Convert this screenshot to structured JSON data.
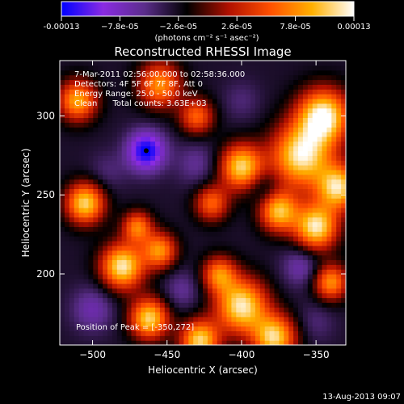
{
  "colorbar": {
    "tick_labels": [
      "-0.00013",
      "−7.8e-05",
      "−2.6e-05",
      "2.6e-05",
      "7.8e-05",
      "0.00013"
    ],
    "units_label": "(photons cm⁻² s⁻¹ asec⁻²)",
    "colors": [
      "#0000ff",
      "#8a2be2",
      "#5a2d8a",
      "#000000",
      "#b01000",
      "#ff5000",
      "#ffb000",
      "#ffffff"
    ]
  },
  "footer": {
    "date": "13-Aug-2013 09:07"
  },
  "chart_data": {
    "type": "heatmap",
    "title": "Reconstructed RHESSI Image",
    "xlabel": "Heliocentric X (arcsec)",
    "ylabel": "Heliocentric Y (arcsec)",
    "xlim": [
      -522,
      -330
    ],
    "ylim": [
      155,
      335
    ],
    "xticks": [
      -500,
      -450,
      -400,
      -350
    ],
    "yticks": [
      200,
      250,
      300
    ],
    "zlim": [
      -0.00013,
      0.00013
    ],
    "annotations": [
      "7-Mar-2011 02:56:00.000 to 02:58:36.000",
      "Detectors: 4F 5F 6F 7F 8F, Att 0",
      "Energy Range: 25.0 - 50.0 keV",
      "Clean      Total counts: 3.63E+03"
    ],
    "peak_label": "Position of Peak = [-350,272]",
    "minimum_marker": [
      -464,
      278
    ],
    "blobs": [
      {
        "x": -345,
        "y": 300,
        "value": 0.00013,
        "r": 12
      },
      {
        "x": -360,
        "y": 275,
        "value": 0.00012,
        "r": 14
      },
      {
        "x": -335,
        "y": 255,
        "value": 0.00011,
        "r": 10
      },
      {
        "x": -375,
        "y": 240,
        "value": 0.0001,
        "r": 9
      },
      {
        "x": -350,
        "y": 230,
        "value": 0.00012,
        "r": 10
      },
      {
        "x": -400,
        "y": 268,
        "value": 0.00011,
        "r": 10
      },
      {
        "x": -420,
        "y": 245,
        "value": 6e-05,
        "r": 8
      },
      {
        "x": -400,
        "y": 180,
        "value": 0.00012,
        "r": 12
      },
      {
        "x": -378,
        "y": 160,
        "value": 0.00011,
        "r": 10
      },
      {
        "x": -415,
        "y": 200,
        "value": 7e-05,
        "r": 8
      },
      {
        "x": -480,
        "y": 205,
        "value": 0.00012,
        "r": 10
      },
      {
        "x": -455,
        "y": 215,
        "value": 8e-05,
        "r": 8
      },
      {
        "x": -505,
        "y": 245,
        "value": 0.00011,
        "r": 9
      },
      {
        "x": -470,
        "y": 230,
        "value": 7e-05,
        "r": 7
      },
      {
        "x": -462,
        "y": 172,
        "value": 0.00011,
        "r": 9
      },
      {
        "x": -428,
        "y": 158,
        "value": 0.00011,
        "r": 9
      },
      {
        "x": -510,
        "y": 310,
        "value": 9e-05,
        "r": 9
      },
      {
        "x": -455,
        "y": 320,
        "value": 8e-05,
        "r": 10
      },
      {
        "x": -430,
        "y": 300,
        "value": 6e-05,
        "r": 8
      },
      {
        "x": -340,
        "y": 195,
        "value": 8e-05,
        "r": 8
      },
      {
        "x": -464,
        "y": 278,
        "value": -0.00013,
        "r": 9
      },
      {
        "x": -430,
        "y": 270,
        "value": -6e-05,
        "r": 10
      },
      {
        "x": -360,
        "y": 205,
        "value": -7e-05,
        "r": 9
      },
      {
        "x": -385,
        "y": 255,
        "value": -6e-05,
        "r": 8
      },
      {
        "x": -440,
        "y": 190,
        "value": -6e-05,
        "r": 9
      },
      {
        "x": -500,
        "y": 178,
        "value": -7e-05,
        "r": 10
      },
      {
        "x": -490,
        "y": 265,
        "value": -5e-05,
        "r": 9
      },
      {
        "x": -400,
        "y": 310,
        "value": -5e-05,
        "r": 9
      },
      {
        "x": -350,
        "y": 170,
        "value": -5e-05,
        "r": 9
      }
    ]
  }
}
